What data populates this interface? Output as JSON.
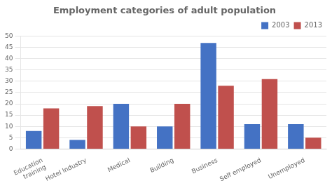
{
  "chart_data": {
    "type": "bar",
    "title": "Employment categories of adult population",
    "categories": [
      "Education\ntraining",
      "Hotel Industry",
      "Medical",
      "Building",
      "Business",
      "Self employed",
      "Unemployed"
    ],
    "series": [
      {
        "name": "2003",
        "color": "#4472c4",
        "values": [
          8,
          4,
          20,
          10,
          47,
          11,
          11
        ]
      },
      {
        "name": "2013",
        "color": "#c0504d",
        "values": [
          18,
          19,
          10,
          20,
          28,
          31,
          5
        ]
      }
    ],
    "ylim": [
      0,
      50
    ],
    "yticks": [
      0,
      5,
      10,
      15,
      20,
      25,
      30,
      35,
      40,
      45,
      50
    ],
    "grid": true,
    "legend": "upper right"
  }
}
